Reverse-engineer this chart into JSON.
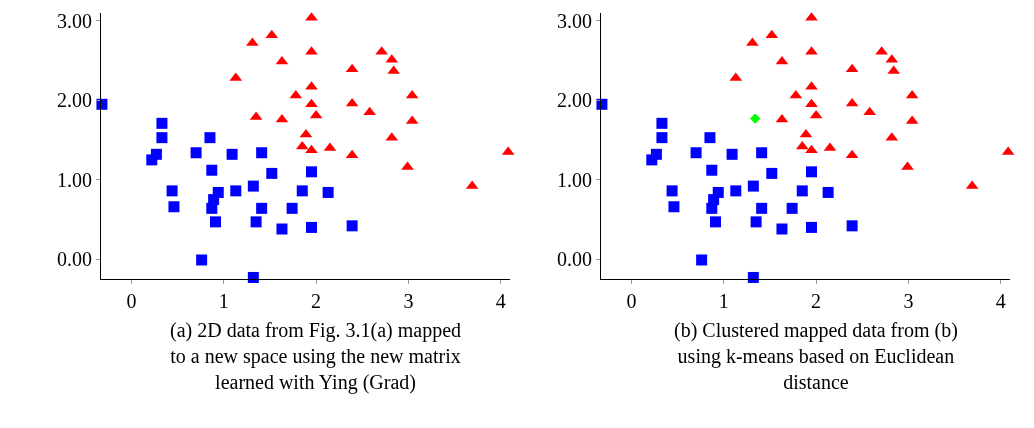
{
  "chart_data": [
    {
      "type": "scatter",
      "xlim": [
        -0.33,
        4.1
      ],
      "ylim": [
        -0.25,
        3.1
      ],
      "xticks": [
        0,
        1,
        2,
        3,
        4
      ],
      "yticks": [
        {
          "value": 0,
          "label": "0.00"
        },
        {
          "value": 1,
          "label": "1.00"
        },
        {
          "value": 2,
          "label": "2.00"
        },
        {
          "value": 3,
          "label": "3.00"
        }
      ],
      "series": [
        {
          "color": "#0000ff",
          "marker": "square",
          "x": [
            -0.32,
            0.33,
            0.33,
            0.27,
            0.22,
            0.85,
            0.7,
            1.09,
            1.41,
            0.87,
            1.52,
            1.95,
            0.44,
            0.46,
            0.94,
            0.89,
            0.87,
            0.91,
            1.13,
            1.32,
            1.41,
            1.35,
            1.74,
            1.85,
            1.63,
            1.95,
            2.13,
            2.39,
            0.76,
            1.32
          ],
          "values": [
            1.95,
            1.71,
            1.53,
            1.32,
            1.25,
            1.53,
            1.34,
            1.32,
            1.34,
            1.12,
            1.08,
            1.1,
            0.86,
            0.66,
            0.84,
            0.75,
            0.64,
            0.47,
            0.86,
            0.92,
            0.64,
            0.47,
            0.64,
            0.86,
            0.38,
            0.4,
            0.84,
            0.42,
            -0.01,
            -0.23
          ]
        },
        {
          "color": "#ff0000",
          "marker": "triangle",
          "x": [
            1.95,
            1.52,
            1.31,
            1.95,
            1.63,
            1.13,
            1.95,
            1.78,
            1.95,
            2.0,
            1.35,
            1.63,
            1.89,
            1.85,
            1.95,
            2.15,
            2.71,
            2.82,
            2.84,
            2.39,
            3.04,
            2.39,
            2.58,
            3.04,
            2.82,
            2.39,
            2.99,
            4.08,
            3.69
          ],
          "values": [
            3.04,
            2.82,
            2.72,
            2.61,
            2.49,
            2.28,
            2.17,
            2.06,
            1.95,
            1.81,
            1.79,
            1.76,
            1.57,
            1.42,
            1.37,
            1.4,
            2.61,
            2.51,
            2.37,
            2.39,
            2.06,
            1.96,
            1.85,
            1.74,
            1.53,
            1.31,
            1.16,
            1.35,
            0.92
          ]
        }
      ],
      "annotations": [
        "(a) 2D data from Fig. 3.1(a) mapped\nto a new space using the new matrix\nlearned with Ying (Grad)"
      ]
    },
    {
      "type": "scatter",
      "xlim": [
        -0.33,
        4.1
      ],
      "ylim": [
        -0.25,
        3.1
      ],
      "xticks": [
        0,
        1,
        2,
        3,
        4
      ],
      "yticks": [
        {
          "value": 0,
          "label": "0.00"
        },
        {
          "value": 1,
          "label": "1.00"
        },
        {
          "value": 2,
          "label": "2.00"
        },
        {
          "value": 3,
          "label": "3.00"
        }
      ],
      "series": [
        {
          "color": "#0000ff",
          "marker": "square",
          "x": [
            -0.32,
            0.33,
            0.33,
            0.27,
            0.22,
            0.85,
            0.7,
            1.09,
            1.41,
            0.87,
            1.52,
            1.95,
            0.44,
            0.46,
            0.94,
            0.89,
            0.87,
            0.91,
            1.13,
            1.32,
            1.41,
            1.35,
            1.74,
            1.85,
            1.63,
            1.95,
            2.13,
            2.39,
            0.76,
            1.32
          ],
          "values": [
            1.95,
            1.71,
            1.53,
            1.32,
            1.25,
            1.53,
            1.34,
            1.32,
            1.34,
            1.12,
            1.08,
            1.1,
            0.86,
            0.66,
            0.84,
            0.75,
            0.64,
            0.47,
            0.86,
            0.92,
            0.64,
            0.47,
            0.64,
            0.86,
            0.38,
            0.4,
            0.84,
            0.42,
            -0.01,
            -0.23
          ]
        },
        {
          "color": "#ff0000",
          "marker": "triangle",
          "x": [
            1.95,
            1.52,
            1.31,
            1.95,
            1.63,
            1.13,
            1.95,
            1.78,
            1.95,
            2.0,
            1.63,
            1.89,
            1.85,
            1.95,
            2.15,
            2.71,
            2.82,
            2.84,
            2.39,
            3.04,
            2.39,
            2.58,
            3.04,
            2.82,
            2.39,
            2.99,
            4.08,
            3.69
          ],
          "values": [
            3.04,
            2.82,
            2.72,
            2.61,
            2.49,
            2.28,
            2.17,
            2.06,
            1.95,
            1.81,
            1.76,
            1.57,
            1.42,
            1.37,
            1.4,
            2.61,
            2.51,
            2.37,
            2.39,
            2.06,
            1.96,
            1.85,
            1.74,
            1.53,
            1.31,
            1.16,
            1.35,
            0.92
          ]
        },
        {
          "color": "#00ff00",
          "marker": "diamond",
          "x": [
            1.34
          ],
          "values": [
            1.77
          ]
        }
      ],
      "annotations": [
        "(b) Clustered mapped data from (b)\nusing k-means based on Euclidean\ndistance"
      ]
    }
  ]
}
